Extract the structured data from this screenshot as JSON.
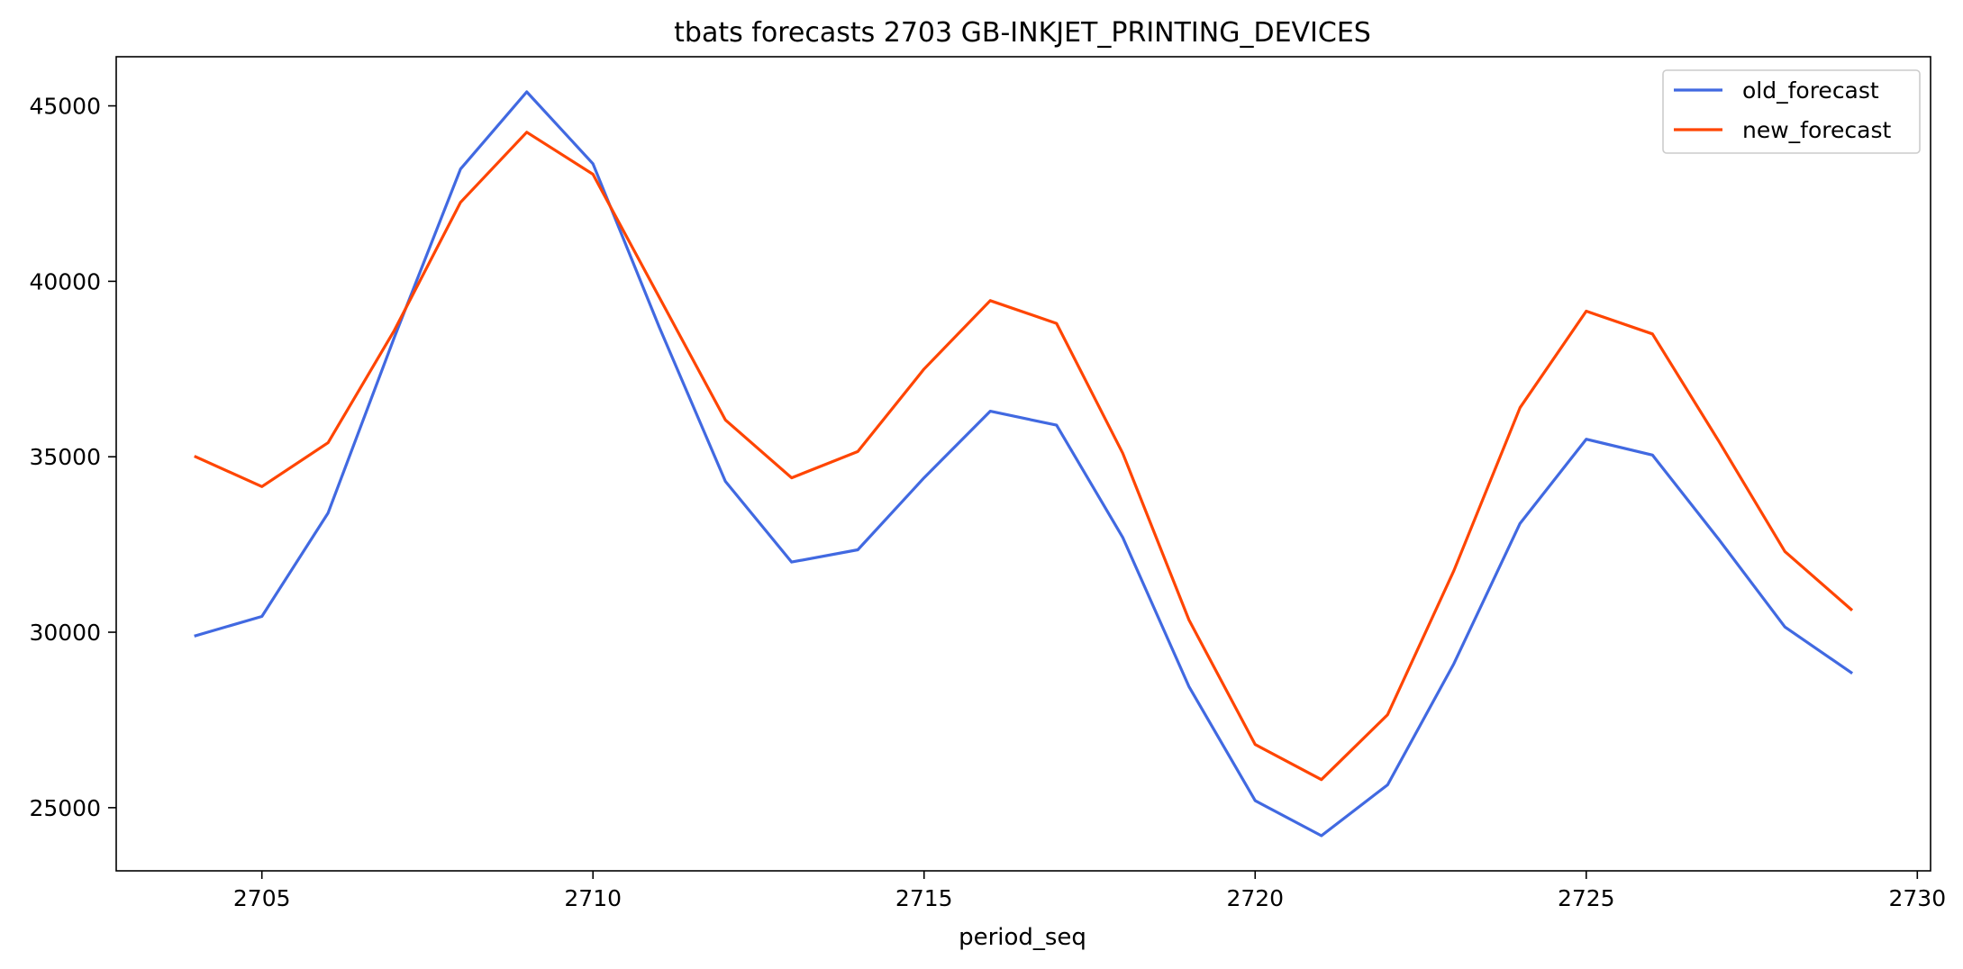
{
  "chart_data": {
    "type": "line",
    "title": "tbats forecasts 2703 GB-INKJET_PRINTING_DEVICES",
    "xlabel": "period_seq",
    "ylabel": "",
    "xlim": [
      2702.8,
      2730.2
    ],
    "ylim": [
      23200,
      46400
    ],
    "x_ticks": [
      2705,
      2710,
      2715,
      2720,
      2725,
      2730
    ],
    "y_ticks": [
      25000,
      30000,
      35000,
      40000,
      45000
    ],
    "grid": false,
    "legend_position": "upper right",
    "x": [
      2704,
      2705,
      2706,
      2707,
      2708,
      2709,
      2710,
      2711,
      2712,
      2713,
      2714,
      2715,
      2716,
      2717,
      2718,
      2719,
      2720,
      2721,
      2722,
      2723,
      2724,
      2725,
      2726,
      2727,
      2728,
      2729
    ],
    "series": [
      {
        "name": "old_forecast",
        "color": "#4169e1",
        "values": [
          29900,
          30450,
          33400,
          38400,
          43200,
          45400,
          43350,
          38700,
          34300,
          32000,
          32350,
          34400,
          36300,
          35900,
          32700,
          28450,
          25200,
          24200,
          25650,
          29100,
          33100,
          35500,
          35050,
          32650,
          30150,
          28850
        ]
      },
      {
        "name": "new_forecast",
        "color": "#ff4500",
        "values": [
          35000,
          34150,
          35400,
          38600,
          42250,
          44250,
          43050,
          39550,
          36050,
          34400,
          35150,
          37500,
          39450,
          38800,
          35100,
          30350,
          26800,
          25800,
          27650,
          31750,
          36400,
          39150,
          38500,
          35450,
          32300,
          30650
        ]
      }
    ]
  }
}
